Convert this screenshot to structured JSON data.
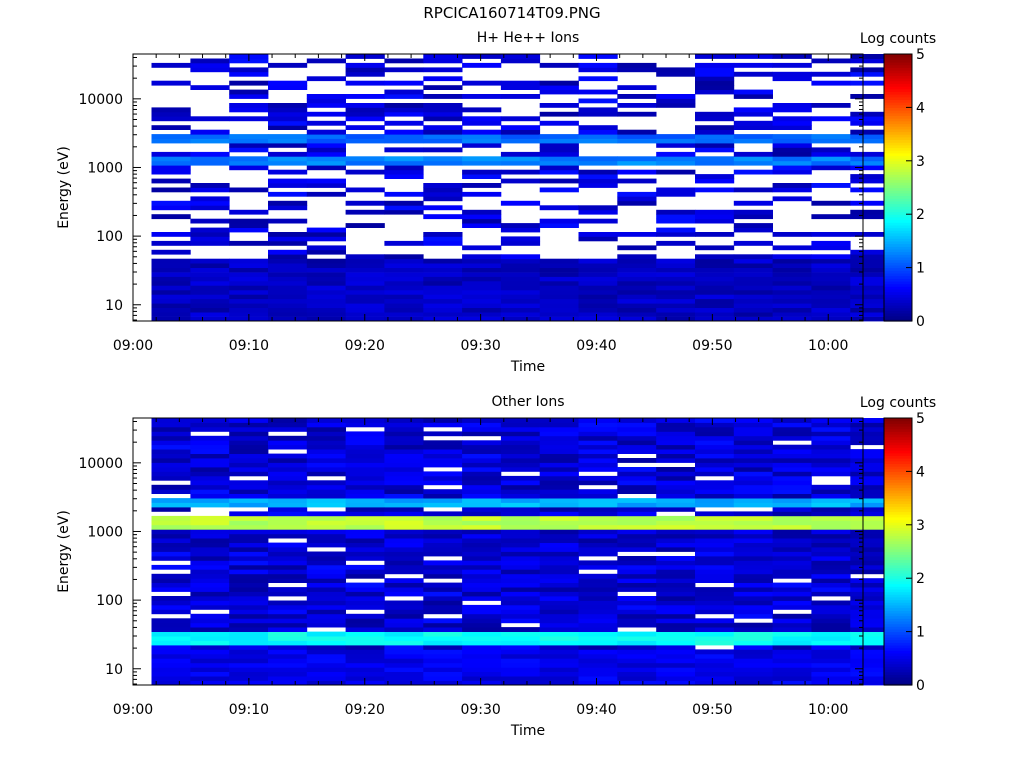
{
  "page": {
    "title": "RPCICA160714T09.PNG"
  },
  "chart_data": [
    {
      "type": "heatmap",
      "title": "H+ He++ Ions",
      "xlabel": "Time",
      "ylabel": "Energy (eV)",
      "x_ticks": [
        "09:00",
        "09:10",
        "09:20",
        "09:30",
        "09:40",
        "09:50",
        "10:00"
      ],
      "y_ticks": [
        "10",
        "100",
        "1000",
        "10000"
      ],
      "y_scale": "log",
      "ylim": [
        5.8,
        45000
      ],
      "xlim_minutes": [
        0,
        63
      ],
      "colorbar": {
        "label": "Log counts",
        "ticks": [
          "0",
          "1",
          "2",
          "3",
          "4",
          "5"
        ],
        "range": [
          0,
          5
        ]
      },
      "seed": 11,
      "white_fraction": 0.55,
      "bands": [
        {
          "e_lo": 2200,
          "e_hi": 3000,
          "level": 1.15
        },
        {
          "e_lo": 1150,
          "e_hi": 1550,
          "level": 1.25
        }
      ],
      "low_energy": {
        "e_lo": 5.8,
        "e_hi": 50,
        "level": 0.15
      }
    },
    {
      "type": "heatmap",
      "title": "Other Ions",
      "xlabel": "Time",
      "ylabel": "Energy (eV)",
      "x_ticks": [
        "09:00",
        "09:10",
        "09:20",
        "09:30",
        "09:40",
        "09:50",
        "10:00"
      ],
      "y_ticks": [
        "10",
        "100",
        "1000",
        "10000"
      ],
      "y_scale": "log",
      "ylim": [
        5.8,
        45000
      ],
      "xlim_minutes": [
        0,
        63
      ],
      "colorbar": {
        "label": "Log counts",
        "ticks": [
          "0",
          "1",
          "2",
          "3",
          "4",
          "5"
        ],
        "range": [
          0,
          5
        ]
      },
      "seed": 23,
      "white_fraction": 0.08,
      "bands": [
        {
          "e_lo": 2200,
          "e_hi": 3100,
          "level": 1.5
        },
        {
          "e_lo": 1100,
          "e_hi": 1600,
          "level": 2.8
        },
        {
          "e_lo": 22,
          "e_hi": 35,
          "level": 1.9
        }
      ],
      "low_energy": {
        "e_lo": 5.8,
        "e_hi": 20,
        "level": 0.35
      }
    }
  ]
}
